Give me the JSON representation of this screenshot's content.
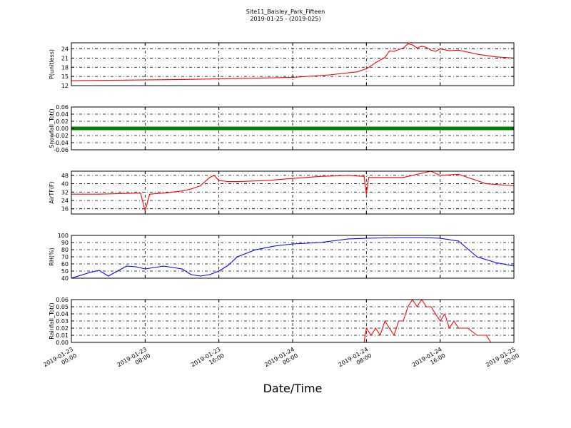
{
  "figure": {
    "title": "Site11_Baisley_Park_Fifteen",
    "subtitle": "2019-01-25 - (2019-025)",
    "xlabel": "Date/Time"
  },
  "chart_data": {
    "type": "line",
    "x_ticks": [
      "2019-01-23 00:00",
      "2019-01-23 08:00",
      "2019-01-23 16:00",
      "2019-01-24 00:00",
      "2019-01-24 08:00",
      "2019-01-24 16:00",
      "2019-01-25 00:00"
    ],
    "x_range": [
      "2019-01-23 00:00",
      "2019-01-25 00:00"
    ],
    "grid": true,
    "panels": [
      {
        "ylabel": "P(unitless)",
        "ylim": [
          12,
          26
        ],
        "yticks": [
          "12",
          "15",
          "18",
          "21",
          "24"
        ],
        "ytick_values": [
          12,
          15,
          18,
          21,
          24
        ],
        "color": "#ff0000",
        "style": "line",
        "series": [
          {
            "x": [
              "2019-01-23 00:00",
              "2019-01-23 06:00",
              "2019-01-23 12:00",
              "2019-01-23 18:00",
              "2019-01-24 00:00",
              "2019-01-24 04:00",
              "2019-01-24 07:00",
              "2019-01-24 08:00",
              "2019-01-24 09:00",
              "2019-01-24 10:00",
              "2019-01-24 10:30",
              "2019-01-24 11:00",
              "2019-01-24 11:30",
              "2019-01-24 12:00",
              "2019-01-24 12:30",
              "2019-01-24 13:00",
              "2019-01-24 13:30",
              "2019-01-24 14:00",
              "2019-01-24 14:30",
              "2019-01-24 15:00",
              "2019-01-24 15:30",
              "2019-01-24 16:00",
              "2019-01-24 17:00",
              "2019-01-24 18:00",
              "2019-01-24 20:00",
              "2019-01-24 22:00",
              "2019-01-25 00:00"
            ],
            "y": [
              13.6,
              13.8,
              14.0,
              14.3,
              14.7,
              15.5,
              16.5,
              17.5,
              19.5,
              21.2,
              23.3,
              23.2,
              23.8,
              24.2,
              25.7,
              25.3,
              24.3,
              24.9,
              24.5,
              23.6,
              23.2,
              24.0,
              23.4,
              23.6,
              22.3,
              21.4,
              21.0
            ]
          }
        ]
      },
      {
        "ylabel": "Snowfall_Tot()",
        "ylim": [
          -0.06,
          0.06
        ],
        "yticks": [
          "-0.06",
          "-0.04",
          "-0.02",
          "0.00",
          "0.02",
          "0.04",
          "0.06"
        ],
        "ytick_values": [
          -0.06,
          -0.04,
          -0.02,
          0.0,
          0.02,
          0.04,
          0.06
        ],
        "color": "#008000",
        "style": "markers",
        "series": [
          {
            "x": [
              "2019-01-23 00:00",
              "2019-01-25 00:00"
            ],
            "y": [
              0.0,
              0.0
            ]
          }
        ]
      },
      {
        "ylabel": "AirTF(F)",
        "ylim": [
          11,
          52
        ],
        "yticks": [
          "16",
          "24",
          "32",
          "40",
          "48"
        ],
        "ytick_values": [
          16,
          24,
          32,
          40,
          48
        ],
        "color": "#ff0000",
        "style": "line",
        "series": [
          {
            "x": [
              "2019-01-23 00:00",
              "2019-01-23 03:00",
              "2019-01-23 07:30",
              "2019-01-23 08:00",
              "2019-01-23 08:30",
              "2019-01-23 10:00",
              "2019-01-23 12:00",
              "2019-01-23 13:00",
              "2019-01-23 14:00",
              "2019-01-23 15:00",
              "2019-01-23 15:30",
              "2019-01-23 16:00",
              "2019-01-23 17:00",
              "2019-01-23 18:00",
              "2019-01-23 21:00",
              "2019-01-24 00:00",
              "2019-01-24 03:00",
              "2019-01-24 06:00",
              "2019-01-24 07:45",
              "2019-01-24 08:00",
              "2019-01-24 08:15",
              "2019-01-24 12:00",
              "2019-01-24 14:00",
              "2019-01-24 15:00",
              "2019-01-24 16:00",
              "2019-01-24 18:00",
              "2019-01-24 21:00",
              "2019-01-25 00:00"
            ],
            "y": [
              30,
              30,
              31,
              14,
              30,
              31,
              33,
              35,
              38,
              46,
              48,
              43,
              42,
              42,
              43,
              45,
              47,
              48,
              47,
              30,
              46,
              46,
              50,
              52,
              48,
              49,
              40,
              38
            ]
          }
        ]
      },
      {
        "ylabel": "RH(%)",
        "ylim": [
          40,
          100
        ],
        "yticks": [
          "40",
          "50",
          "60",
          "70",
          "80",
          "90",
          "100"
        ],
        "ytick_values": [
          40,
          50,
          60,
          70,
          80,
          90,
          100
        ],
        "color": "#0000ff",
        "style": "line",
        "series": [
          {
            "x": [
              "2019-01-23 00:00",
              "2019-01-23 02:00",
              "2019-01-23 03:00",
              "2019-01-23 04:00",
              "2019-01-23 05:00",
              "2019-01-23 06:00",
              "2019-01-23 07:00",
              "2019-01-23 08:00",
              "2019-01-23 10:00",
              "2019-01-23 12:00",
              "2019-01-23 13:00",
              "2019-01-23 14:00",
              "2019-01-23 15:00",
              "2019-01-23 16:00",
              "2019-01-23 17:00",
              "2019-01-23 18:00",
              "2019-01-23 20:00",
              "2019-01-23 22:00",
              "2019-01-24 00:00",
              "2019-01-24 03:00",
              "2019-01-24 06:00",
              "2019-01-24 08:00",
              "2019-01-24 12:00",
              "2019-01-24 14:00",
              "2019-01-24 16:00",
              "2019-01-24 18:00",
              "2019-01-24 20:00",
              "2019-01-24 22:00",
              "2019-01-25 00:00"
            ],
            "y": [
              40,
              48,
              51,
              43,
              50,
              57,
              56,
              53,
              57,
              53,
              45,
              43,
              45,
              50,
              58,
              70,
              80,
              85,
              88,
              90,
              95,
              96,
              97,
              97,
              96,
              92,
              70,
              62,
              57
            ]
          }
        ]
      },
      {
        "ylabel": "Rainfall_Tot()",
        "ylim": [
          0.0,
          0.06
        ],
        "yticks": [
          "0.00",
          "0.01",
          "0.02",
          "0.03",
          "0.04",
          "0.05",
          "0.06"
        ],
        "ytick_values": [
          0.0,
          0.01,
          0.02,
          0.03,
          0.04,
          0.05,
          0.06
        ],
        "color": "#ff0000",
        "style": "line",
        "series": [
          {
            "x": [
              "2019-01-23 00:00",
              "2019-01-24 07:45",
              "2019-01-24 08:00",
              "2019-01-24 08:30",
              "2019-01-24 09:00",
              "2019-01-24 09:30",
              "2019-01-24 10:00",
              "2019-01-24 10:30",
              "2019-01-24 11:00",
              "2019-01-24 11:30",
              "2019-01-24 12:00",
              "2019-01-24 12:30",
              "2019-01-24 13:00",
              "2019-01-24 13:30",
              "2019-01-24 14:00",
              "2019-01-24 14:30",
              "2019-01-24 15:00",
              "2019-01-24 15:30",
              "2019-01-24 16:00",
              "2019-01-24 16:30",
              "2019-01-24 17:00",
              "2019-01-24 17:30",
              "2019-01-24 18:00",
              "2019-01-24 19:00",
              "2019-01-24 20:00",
              "2019-01-24 21:00",
              "2019-01-24 21:30",
              "2019-01-24 22:00",
              "2019-01-25 00:00"
            ],
            "y": [
              0.0,
              0.0,
              0.02,
              0.01,
              0.02,
              0.01,
              0.03,
              0.02,
              0.01,
              0.03,
              0.03,
              0.05,
              0.06,
              0.05,
              0.06,
              0.05,
              0.05,
              0.04,
              0.03,
              0.04,
              0.02,
              0.03,
              0.02,
              0.02,
              0.01,
              0.01,
              0.0,
              0.0,
              0.0
            ]
          }
        ]
      }
    ]
  }
}
